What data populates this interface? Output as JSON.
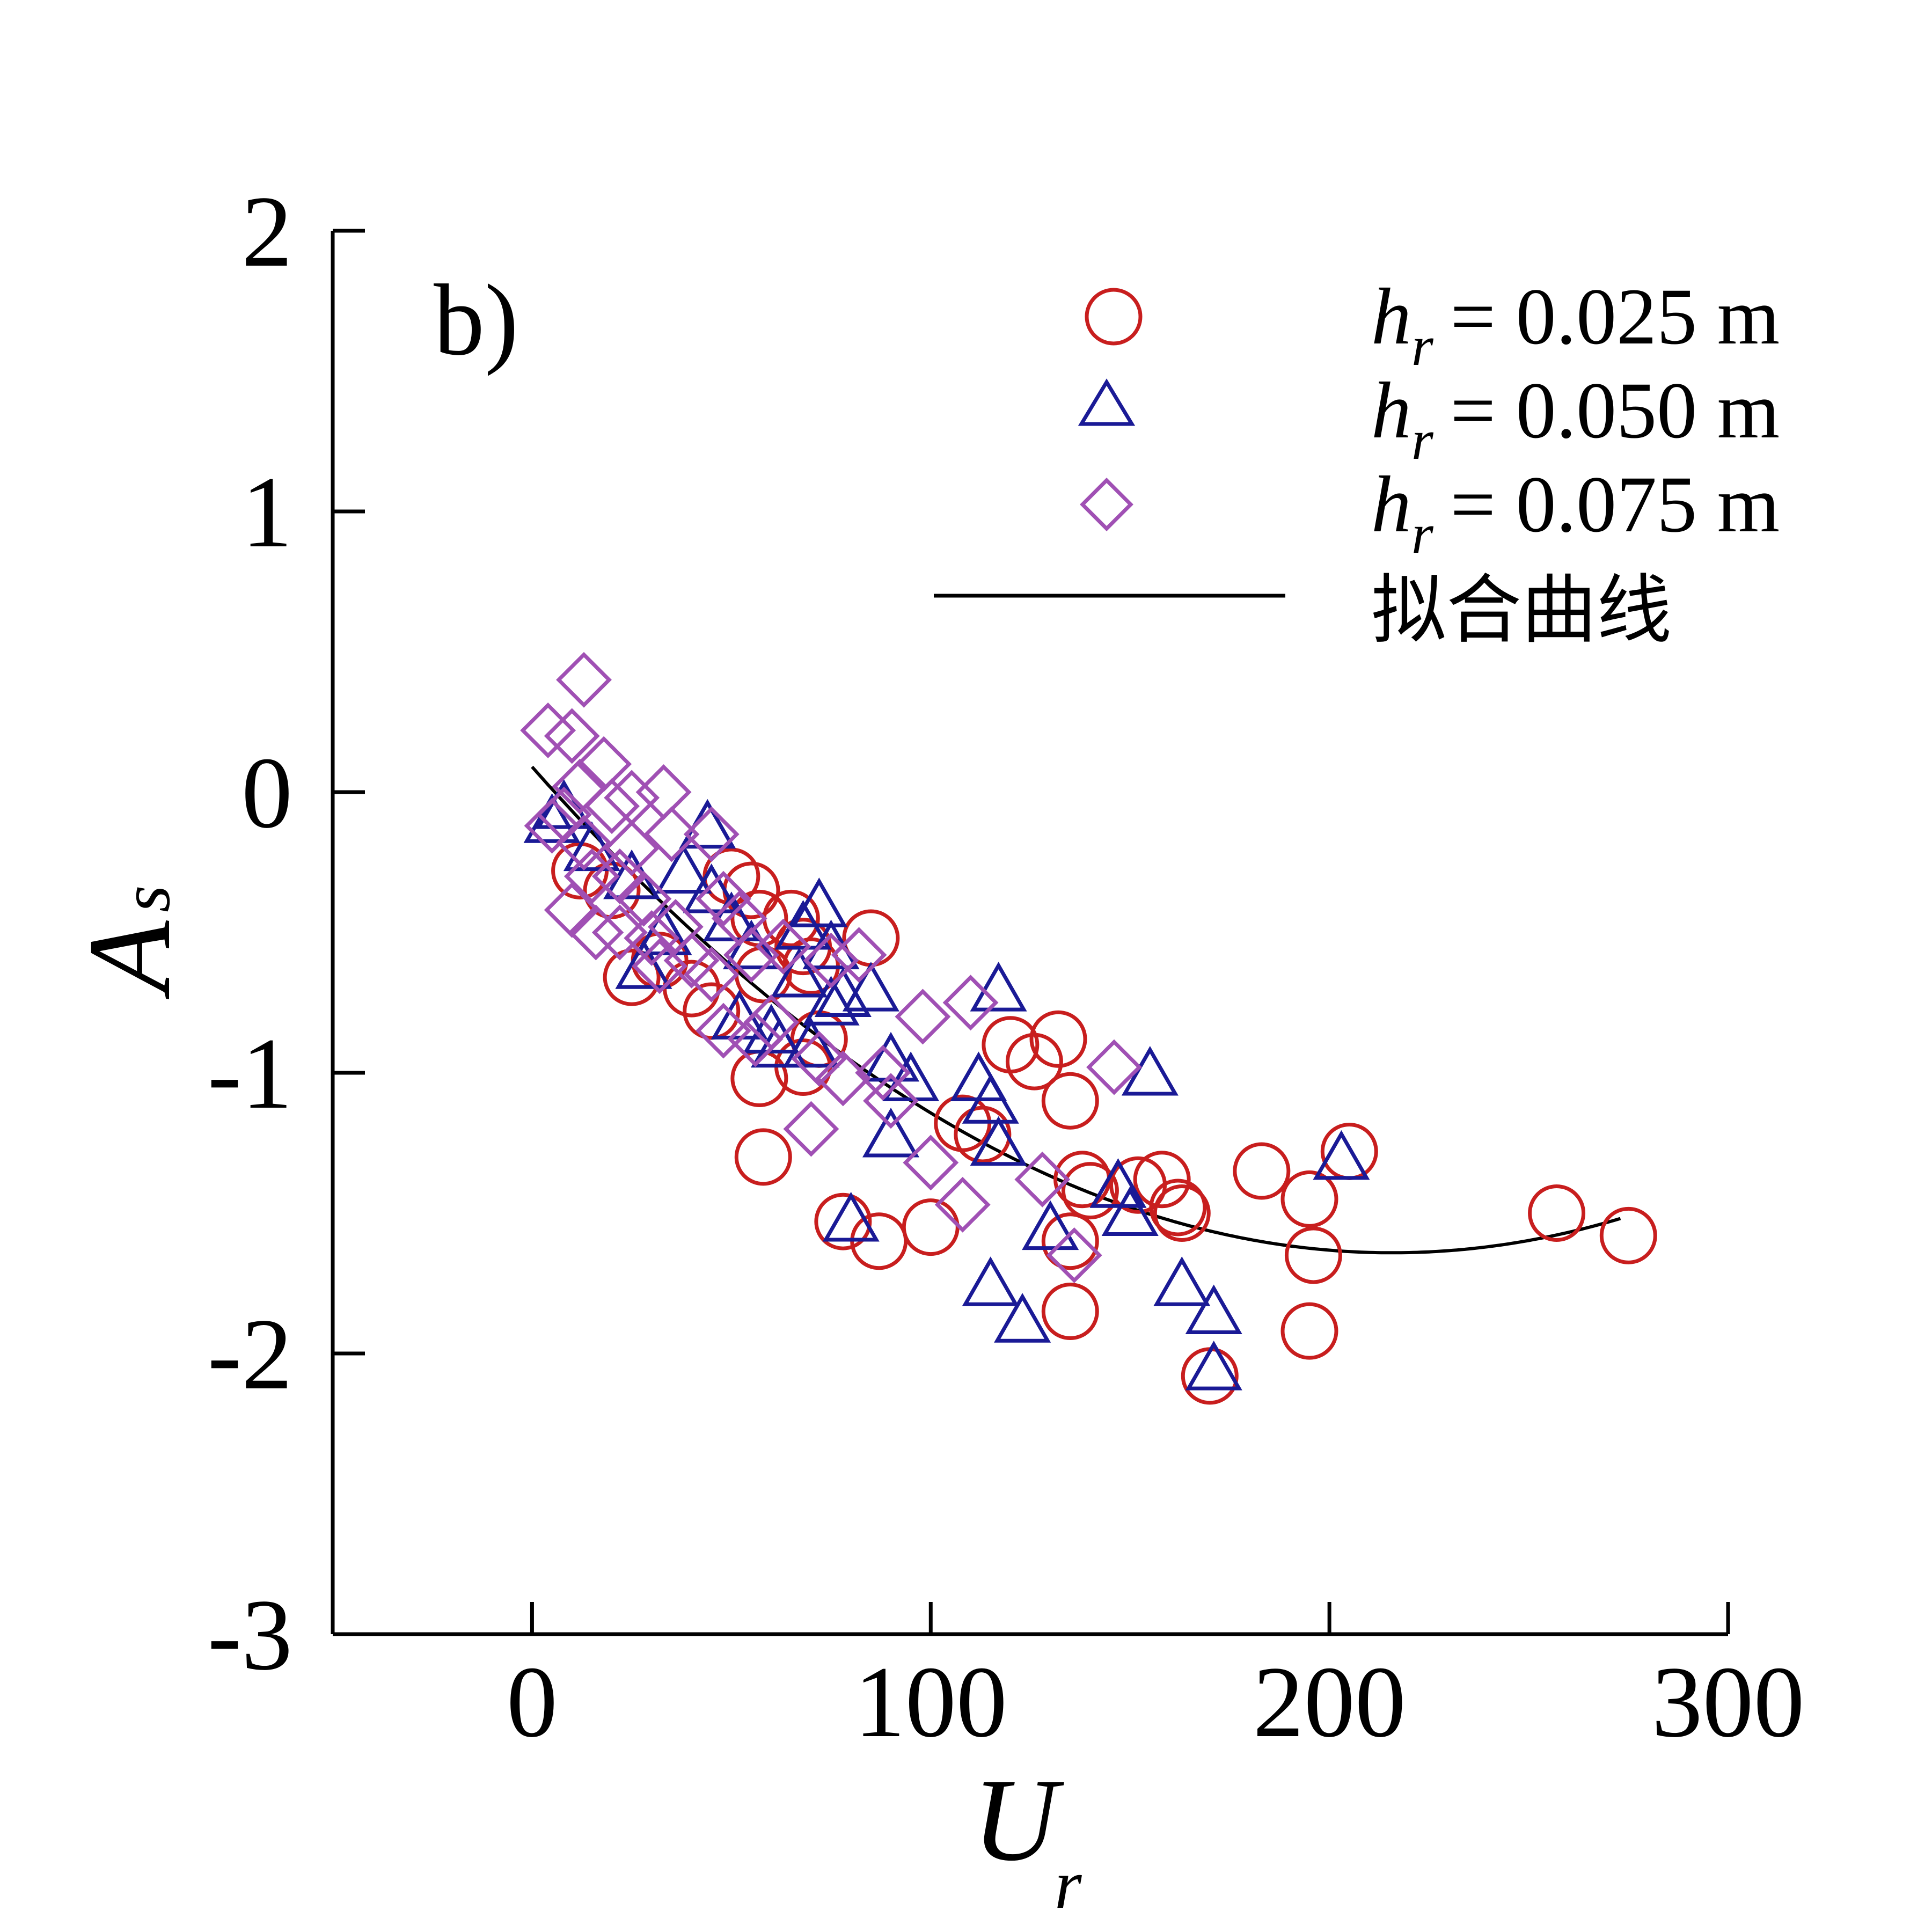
{
  "chart_data": {
    "type": "scatter",
    "panel_label": "b)",
    "xlabel": "U",
    "xlabel_sub": "r",
    "ylabel": "A",
    "ylabel_sub": "s",
    "xlim": [
      -50,
      300
    ],
    "ylim": [
      -3,
      2
    ],
    "x_ticks": [
      0,
      100,
      200,
      300
    ],
    "x_tick_labels": [
      "0",
      "100",
      "200",
      "300"
    ],
    "y_ticks": [
      -3,
      -2,
      -1,
      0,
      1,
      2
    ],
    "y_tick_labels": [
      "-3",
      "-2",
      "-1",
      "0",
      "1",
      "2"
    ],
    "grid": false,
    "legend_position": "top-right",
    "series": [
      {
        "name": "h_r = 0.025 m",
        "legend_var": "h",
        "legend_sub": "r",
        "legend_rest": " = 0.025 m",
        "marker": "circle",
        "color": "#c81e1e",
        "points": [
          [
            12,
            -0.28
          ],
          [
            20,
            -0.35
          ],
          [
            25,
            -0.66
          ],
          [
            32,
            -0.6
          ],
          [
            40,
            -0.7
          ],
          [
            45,
            -0.78
          ],
          [
            50,
            -0.3
          ],
          [
            55,
            -0.35
          ],
          [
            57,
            -0.45
          ],
          [
            58,
            -0.65
          ],
          [
            57,
            -1.02
          ],
          [
            58,
            -1.3
          ],
          [
            65,
            -0.45
          ],
          [
            68,
            -0.55
          ],
          [
            68,
            -0.98
          ],
          [
            70,
            -0.62
          ],
          [
            72,
            -0.88
          ],
          [
            85,
            -0.52
          ],
          [
            78,
            -1.53
          ],
          [
            87,
            -1.6
          ],
          [
            100,
            -1.55
          ],
          [
            108,
            -1.18
          ],
          [
            113,
            -1.22
          ],
          [
            120,
            -0.9
          ],
          [
            126,
            -0.96
          ],
          [
            132,
            -0.88
          ],
          [
            135,
            -1.1
          ],
          [
            138,
            -1.38
          ],
          [
            140,
            -1.42
          ],
          [
            135,
            -1.6
          ],
          [
            135,
            -1.85
          ],
          [
            152,
            -1.4
          ],
          [
            158,
            -1.38
          ],
          [
            162,
            -1.48
          ],
          [
            163,
            -1.5
          ],
          [
            170,
            -2.08
          ],
          [
            183,
            -1.35
          ],
          [
            195,
            -1.45
          ],
          [
            196,
            -1.65
          ],
          [
            195,
            -1.92
          ],
          [
            205,
            -1.28
          ],
          [
            257,
            -1.5
          ],
          [
            275,
            -1.58
          ]
        ]
      },
      {
        "name": "h_r = 0.050 m",
        "legend_var": "h",
        "legend_sub": "r",
        "legend_rest": " = 0.050 m",
        "marker": "triangle",
        "color": "#1a1a96",
        "points": [
          [
            5,
            -0.1
          ],
          [
            8,
            -0.05
          ],
          [
            15,
            -0.2
          ],
          [
            25,
            -0.3
          ],
          [
            28,
            -0.62
          ],
          [
            33,
            -0.5
          ],
          [
            38,
            -0.28
          ],
          [
            44,
            -0.12
          ],
          [
            45,
            -0.35
          ],
          [
            50,
            -0.45
          ],
          [
            52,
            -0.8
          ],
          [
            55,
            -0.55
          ],
          [
            60,
            -0.85
          ],
          [
            62,
            -0.9
          ],
          [
            67,
            -0.65
          ],
          [
            68,
            -0.48
          ],
          [
            72,
            -0.4
          ],
          [
            75,
            -0.55
          ],
          [
            70,
            -0.9
          ],
          [
            75,
            -0.75
          ],
          [
            78,
            -0.72
          ],
          [
            80,
            -1.52
          ],
          [
            85,
            -0.7
          ],
          [
            90,
            -0.95
          ],
          [
            90,
            -1.22
          ],
          [
            95,
            -1.02
          ],
          [
            112,
            -1.02
          ],
          [
            115,
            -1.1
          ],
          [
            117,
            -0.7
          ],
          [
            117,
            -1.25
          ],
          [
            115,
            -1.75
          ],
          [
            123,
            -1.88
          ],
          [
            130,
            -1.55
          ],
          [
            147,
            -1.4
          ],
          [
            150,
            -1.5
          ],
          [
            155,
            -1.0
          ],
          [
            163,
            -1.75
          ],
          [
            171,
            -1.85
          ],
          [
            171,
            -2.05
          ],
          [
            203,
            -1.3
          ]
        ]
      },
      {
        "name": "h_r = 0.075 m",
        "legend_var": "h",
        "legend_sub": "r",
        "legend_rest": " = 0.075 m",
        "marker": "diamond",
        "color": "#a050b4",
        "points": [
          [
            4,
            0.22
          ],
          [
            5,
            -0.12
          ],
          [
            8,
            -0.08
          ],
          [
            10,
            0.2
          ],
          [
            13,
            0.4
          ],
          [
            12,
            0.02
          ],
          [
            10,
            -0.42
          ],
          [
            13,
            -0.18
          ],
          [
            15,
            -0.3
          ],
          [
            16,
            -0.5
          ],
          [
            18,
            0.1
          ],
          [
            20,
            -0.05
          ],
          [
            22,
            -0.3
          ],
          [
            22,
            -0.5
          ],
          [
            25,
            -0.02
          ],
          [
            25,
            -0.2
          ],
          [
            28,
            -0.38
          ],
          [
            30,
            -0.52
          ],
          [
            32,
            -0.62
          ],
          [
            33,
            0.0
          ],
          [
            35,
            -0.15
          ],
          [
            36,
            -0.48
          ],
          [
            40,
            -0.6
          ],
          [
            45,
            -0.15
          ],
          [
            45,
            -0.65
          ],
          [
            48,
            -0.38
          ],
          [
            48,
            -0.85
          ],
          [
            52,
            -0.45
          ],
          [
            55,
            -0.58
          ],
          [
            56,
            -0.88
          ],
          [
            60,
            -0.82
          ],
          [
            63,
            -0.55
          ],
          [
            70,
            -1.2
          ],
          [
            72,
            -0.95
          ],
          [
            75,
            -0.6
          ],
          [
            78,
            -1.02
          ],
          [
            82,
            -0.58
          ],
          [
            88,
            -1.0
          ],
          [
            90,
            -1.1
          ],
          [
            98,
            -0.8
          ],
          [
            100,
            -1.32
          ],
          [
            108,
            -1.47
          ],
          [
            110,
            -0.75
          ],
          [
            128,
            -1.38
          ],
          [
            136,
            -1.65
          ],
          [
            146,
            -0.98
          ]
        ]
      }
    ],
    "fit_curve": {
      "name": "拟合曲线",
      "color": "#000000",
      "x_range": [
        0,
        273
      ],
      "coefficients": [
        0.09,
        -0.01605,
        3.72e-05
      ]
    }
  }
}
